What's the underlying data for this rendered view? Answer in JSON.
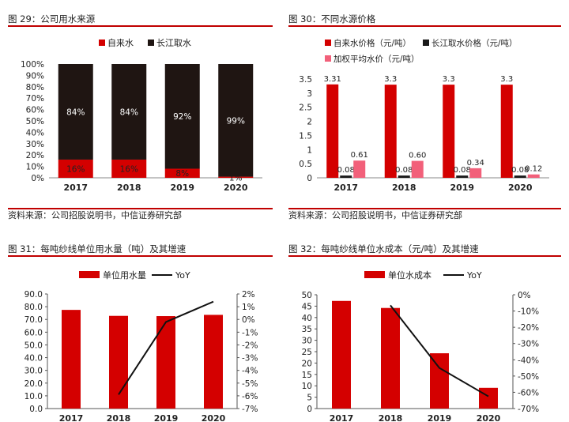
{
  "chart_data": [
    {
      "type": "bar",
      "title": "图 29：公司用水来源",
      "stacked": true,
      "categories": [
        "2017",
        "2018",
        "2019",
        "2020"
      ],
      "series": [
        {
          "name": "自来水",
          "color": "#d40000",
          "values": [
            16,
            16,
            8,
            1
          ],
          "labels": [
            "16%",
            "16%",
            "8%",
            "1%"
          ]
        },
        {
          "name": "长江取水",
          "color": "#1f1512",
          "values": [
            84,
            84,
            92,
            99
          ],
          "labels": [
            "84%",
            "84%",
            "92%",
            "99%"
          ]
        }
      ],
      "ylim": [
        0,
        100
      ],
      "yticks": [
        "0%",
        "10%",
        "20%",
        "30%",
        "40%",
        "50%",
        "60%",
        "70%",
        "80%",
        "90%",
        "100%"
      ],
      "legend": "top-center",
      "source": "资料来源：公司招股说明书，中信证券研究部"
    },
    {
      "type": "bar",
      "title": "图 30：不同水源价格",
      "categories": [
        "2017",
        "2018",
        "2019",
        "2020"
      ],
      "series": [
        {
          "name": "自来水价格（元/吨）",
          "color": "#d40000",
          "values": [
            3.31,
            3.3,
            3.3,
            3.3
          ],
          "labels": [
            "3.31",
            "3.3",
            "3.3",
            "3.3"
          ]
        },
        {
          "name": "长江取水价格（元/吨）",
          "color": "#1a1a1a",
          "values": [
            0.08,
            0.08,
            0.08,
            0.08
          ],
          "labels": [
            "0.08",
            "0.08",
            "0.08",
            "0.08"
          ]
        },
        {
          "name": "加权平均水价（元/吨）",
          "color": "#f2607a",
          "values": [
            0.61,
            0.6,
            0.34,
            0.12
          ],
          "labels": [
            "0.61",
            "0.60",
            "0.34",
            "0.12"
          ]
        }
      ],
      "ylim": [
        0,
        3.5
      ],
      "yticks": [
        "0",
        "0.5",
        "1",
        "1.5",
        "2",
        "2.5",
        "3",
        "3.5"
      ],
      "legend": "top",
      "source": "资料来源：公司招股说明书，中信证券研究部"
    },
    {
      "type": "bar",
      "title": "图 31：每吨纱线单位用水量（吨）及其增速",
      "categories": [
        "2017",
        "2018",
        "2019",
        "2020"
      ],
      "series": [
        {
          "name": "单位用水量",
          "type": "bar",
          "axis": "left",
          "color": "#d40000",
          "values": [
            77.5,
            72.8,
            72.6,
            73.6
          ]
        },
        {
          "name": "YoY",
          "type": "line",
          "axis": "right",
          "color": "#111111",
          "values": [
            null,
            -5.9,
            -0.2,
            1.4
          ]
        }
      ],
      "ylim": [
        0,
        90
      ],
      "yticks": [
        "0.0",
        "10.0",
        "20.0",
        "30.0",
        "40.0",
        "50.0",
        "60.0",
        "70.0",
        "80.0",
        "90.0"
      ],
      "y2lim": [
        -7,
        2
      ],
      "y2ticks": [
        "-7%",
        "-6%",
        "-5%",
        "-4%",
        "-3%",
        "-2%",
        "-1%",
        "0%",
        "1%",
        "2%"
      ],
      "legend": "top-center"
    },
    {
      "type": "bar",
      "title": "图 32：每吨纱线单位水成本（元/吨）及其增速",
      "categories": [
        "2017",
        "2018",
        "2019",
        "2020"
      ],
      "series": [
        {
          "name": "单位水成本",
          "type": "bar",
          "axis": "left",
          "color": "#d40000",
          "values": [
            47.3,
            44.2,
            24.3,
            9.1
          ]
        },
        {
          "name": "YoY",
          "type": "line",
          "axis": "right",
          "color": "#111111",
          "values": [
            null,
            -6.5,
            -45,
            -62.5
          ]
        }
      ],
      "ylim": [
        0,
        50
      ],
      "yticks": [
        "0",
        "5",
        "10",
        "15",
        "20",
        "25",
        "30",
        "35",
        "40",
        "45",
        "50"
      ],
      "y2lim": [
        -70,
        0
      ],
      "y2ticks": [
        "-70%",
        "-60%",
        "-50%",
        "-40%",
        "-30%",
        "-20%",
        "-10%",
        "0%"
      ],
      "legend": "top-center"
    }
  ]
}
